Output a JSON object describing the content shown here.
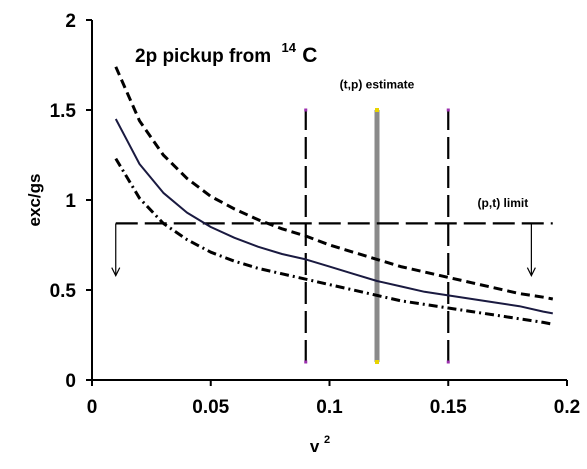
{
  "chart_data": {
    "type": "line",
    "title": "2p pickup from",
    "title_nucleus": {
      "mass": "14",
      "symbol": "C"
    },
    "xlabel": {
      "base": "v",
      "sup": "2"
    },
    "ylabel": "exc/gs",
    "xlim": [
      0,
      0.2
    ],
    "ylim": [
      0,
      2
    ],
    "xticks": [
      0,
      0.05,
      0.1,
      0.15,
      0.2
    ],
    "xtick_labels": [
      "0",
      "0.05",
      "0.1",
      "0.15",
      "0.2"
    ],
    "yticks": [
      0,
      0.5,
      1,
      1.5,
      2
    ],
    "ytick_labels": [
      "0",
      "0.5",
      "1",
      "1.5",
      "2"
    ],
    "grid": false,
    "legend": "none",
    "series": [
      {
        "style": "solid",
        "color": "#1a1a40",
        "x": [
          0.01,
          0.02,
          0.03,
          0.04,
          0.05,
          0.06,
          0.07,
          0.08,
          0.09,
          0.1,
          0.11,
          0.12,
          0.13,
          0.14,
          0.15,
          0.16,
          0.17,
          0.18,
          0.19,
          0.194
        ],
        "y": [
          1.45,
          1.2,
          1.04,
          0.93,
          0.85,
          0.79,
          0.74,
          0.7,
          0.67,
          0.63,
          0.59,
          0.55,
          0.52,
          0.49,
          0.47,
          0.45,
          0.43,
          0.41,
          0.38,
          0.37
        ]
      },
      {
        "style": "dashed",
        "color": "#000000",
        "x": [
          0.01,
          0.02,
          0.03,
          0.04,
          0.05,
          0.06,
          0.07,
          0.08,
          0.09,
          0.1,
          0.11,
          0.12,
          0.13,
          0.14,
          0.15,
          0.16,
          0.17,
          0.18,
          0.19,
          0.194
        ],
        "y": [
          1.74,
          1.44,
          1.25,
          1.12,
          1.02,
          0.95,
          0.89,
          0.84,
          0.8,
          0.75,
          0.71,
          0.67,
          0.63,
          0.6,
          0.57,
          0.54,
          0.51,
          0.48,
          0.46,
          0.45
        ]
      },
      {
        "style": "dash-dot",
        "color": "#000000",
        "x": [
          0.01,
          0.02,
          0.03,
          0.04,
          0.05,
          0.06,
          0.07,
          0.08,
          0.09,
          0.1,
          0.11,
          0.12,
          0.13,
          0.14,
          0.15,
          0.16,
          0.17,
          0.18,
          0.19,
          0.194
        ],
        "y": [
          1.23,
          1.01,
          0.87,
          0.78,
          0.71,
          0.66,
          0.62,
          0.59,
          0.56,
          0.53,
          0.5,
          0.47,
          0.44,
          0.42,
          0.4,
          0.38,
          0.36,
          0.34,
          0.32,
          0.31
        ]
      }
    ],
    "vertical_lines": [
      {
        "x": 0.09,
        "y": [
          0.1,
          1.5
        ],
        "style": "dash-long",
        "color": "#000000"
      },
      {
        "x": 0.12,
        "y": [
          0.1,
          1.5
        ],
        "style": "band",
        "color": "#8a8a8a"
      },
      {
        "x": 0.15,
        "y": [
          0.1,
          1.5
        ],
        "style": "dash-long",
        "color": "#000000"
      }
    ],
    "horizontal_line": {
      "y": 0.87,
      "x": [
        0.01,
        0.194
      ],
      "style": "dash-long",
      "color": "#000000"
    },
    "limit_arrows": [
      {
        "x": 0.01,
        "from": 0.87,
        "to": 0.58
      },
      {
        "x": 0.185,
        "from": 0.87,
        "to": 0.58
      }
    ],
    "annotations": [
      {
        "text": "(t,p) estimate",
        "x": 0.12,
        "y": 1.62
      },
      {
        "text": "(p,t) limit",
        "x": 0.173,
        "y": 0.96
      }
    ],
    "colors": {
      "axis": "#000000",
      "band": "#8a8a8a",
      "band_cap": "#e8d400",
      "marker": "#9b2fae"
    }
  }
}
